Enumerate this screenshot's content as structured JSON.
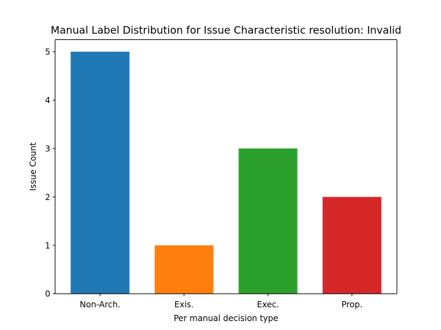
{
  "chart_data": {
    "type": "bar",
    "title": "Manual Label Distribution for Issue Characteristic resolution: Invalid",
    "xlabel": "Per manual decision type",
    "ylabel": "Issue Count",
    "categories": [
      "Non-Arch.",
      "Exis.",
      "Exec.",
      "Prop."
    ],
    "values": [
      5,
      1,
      3,
      2
    ],
    "colors": [
      "#1f77b4",
      "#ff7f0e",
      "#2ca02c",
      "#d62728"
    ],
    "ylim": [
      0,
      5.25
    ],
    "yticks": [
      0,
      1,
      2,
      3,
      4,
      5
    ],
    "grid": false,
    "legend": "none"
  }
}
